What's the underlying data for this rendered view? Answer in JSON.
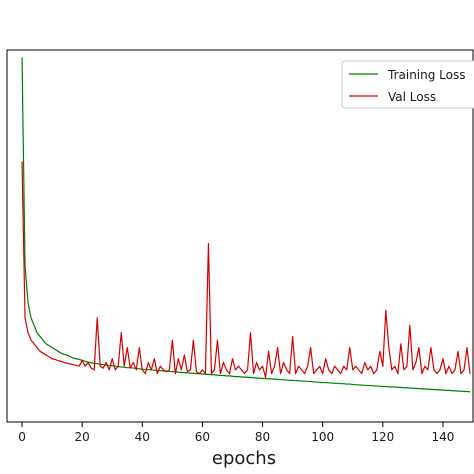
{
  "chart_data": {
    "type": "line",
    "title": "",
    "xlabel": "epochs",
    "ylabel": "",
    "xlim": [
      -5,
      150
    ],
    "ylim": [
      0,
      1
    ],
    "xticks": [
      0,
      20,
      40,
      60,
      80,
      100,
      120,
      140
    ],
    "grid": false,
    "legend_position": "top-right",
    "series": [
      {
        "name": "Training Loss",
        "color": "#008000",
        "x": [
          0,
          1,
          2,
          3,
          4,
          5,
          6,
          7,
          8,
          9,
          10,
          11,
          12,
          13,
          14,
          15,
          16,
          17,
          18,
          19,
          20,
          21,
          22,
          23,
          24,
          25,
          26,
          27,
          28,
          29,
          30,
          31,
          32,
          33,
          34,
          35,
          36,
          37,
          38,
          39,
          40,
          41,
          42,
          43,
          44,
          45,
          46,
          47,
          48,
          49,
          50,
          51,
          52,
          53,
          54,
          55,
          56,
          57,
          58,
          59,
          60,
          61,
          62,
          63,
          64,
          65,
          66,
          67,
          68,
          69,
          70,
          71,
          72,
          73,
          74,
          75,
          76,
          77,
          78,
          79,
          80,
          81,
          82,
          83,
          84,
          85,
          86,
          87,
          88,
          89,
          90,
          91,
          92,
          93,
          94,
          95,
          96,
          97,
          98,
          99,
          100,
          101,
          102,
          103,
          104,
          105,
          106,
          107,
          108,
          109,
          110,
          111,
          112,
          113,
          114,
          115,
          116,
          117,
          118,
          119,
          120,
          121,
          122,
          123,
          124,
          125,
          126,
          127,
          128,
          129,
          130,
          131,
          132,
          133,
          134,
          135,
          136,
          137,
          138,
          139,
          140,
          141,
          142,
          143,
          144,
          145,
          146,
          147,
          148,
          149
        ],
        "values": [
          0.98,
          0.42,
          0.32,
          0.28,
          0.26,
          0.24,
          0.23,
          0.22,
          0.21,
          0.205,
          0.2,
          0.195,
          0.19,
          0.185,
          0.182,
          0.18,
          0.176,
          0.172,
          0.17,
          0.168,
          0.166,
          0.163,
          0.161,
          0.159,
          0.158,
          0.157,
          0.155,
          0.154,
          0.153,
          0.152,
          0.151,
          0.15,
          0.149,
          0.148,
          0.147,
          0.146,
          0.146,
          0.145,
          0.144,
          0.143,
          0.142,
          0.141,
          0.141,
          0.14,
          0.139,
          0.139,
          0.138,
          0.137,
          0.137,
          0.136,
          0.135,
          0.135,
          0.134,
          0.133,
          0.133,
          0.132,
          0.131,
          0.131,
          0.13,
          0.13,
          0.129,
          0.128,
          0.128,
          0.127,
          0.127,
          0.126,
          0.125,
          0.125,
          0.124,
          0.124,
          0.123,
          0.122,
          0.122,
          0.121,
          0.121,
          0.12,
          0.12,
          0.119,
          0.118,
          0.118,
          0.117,
          0.117,
          0.116,
          0.116,
          0.115,
          0.115,
          0.114,
          0.113,
          0.113,
          0.112,
          0.112,
          0.111,
          0.111,
          0.11,
          0.11,
          0.109,
          0.109,
          0.108,
          0.107,
          0.107,
          0.106,
          0.106,
          0.105,
          0.105,
          0.104,
          0.104,
          0.103,
          0.103,
          0.102,
          0.102,
          0.101,
          0.1,
          0.1,
          0.099,
          0.099,
          0.098,
          0.098,
          0.097,
          0.097,
          0.096,
          0.096,
          0.095,
          0.095,
          0.094,
          0.094,
          0.093,
          0.093,
          0.092,
          0.092,
          0.091,
          0.091,
          0.09,
          0.09,
          0.089,
          0.089,
          0.088,
          0.088,
          0.087,
          0.087,
          0.086,
          0.086,
          0.085,
          0.085,
          0.084,
          0.084,
          0.083,
          0.083,
          0.082,
          0.082,
          0.081
        ]
      },
      {
        "name": "Val Loss",
        "color": "#d40000",
        "x": [
          0,
          1,
          2,
          3,
          4,
          5,
          6,
          7,
          8,
          9,
          10,
          11,
          12,
          13,
          14,
          15,
          16,
          17,
          18,
          19,
          20,
          21,
          22,
          23,
          24,
          25,
          26,
          27,
          28,
          29,
          30,
          31,
          32,
          33,
          34,
          35,
          36,
          37,
          38,
          39,
          40,
          41,
          42,
          43,
          44,
          45,
          46,
          47,
          48,
          49,
          50,
          51,
          52,
          53,
          54,
          55,
          56,
          57,
          58,
          59,
          60,
          61,
          62,
          63,
          64,
          65,
          66,
          67,
          68,
          69,
          70,
          71,
          72,
          73,
          74,
          75,
          76,
          77,
          78,
          79,
          80,
          81,
          82,
          83,
          84,
          85,
          86,
          87,
          88,
          89,
          90,
          91,
          92,
          93,
          94,
          95,
          96,
          97,
          98,
          99,
          100,
          101,
          102,
          103,
          104,
          105,
          106,
          107,
          108,
          109,
          110,
          111,
          112,
          113,
          114,
          115,
          116,
          117,
          118,
          119,
          120,
          121,
          122,
          123,
          124,
          125,
          126,
          127,
          128,
          129,
          130,
          131,
          132,
          133,
          134,
          135,
          136,
          137,
          138,
          139,
          140,
          141,
          142,
          143,
          144,
          145,
          146,
          147,
          148,
          149
        ],
        "values": [
          0.7,
          0.28,
          0.24,
          0.22,
          0.21,
          0.2,
          0.19,
          0.185,
          0.18,
          0.175,
          0.17,
          0.168,
          0.165,
          0.163,
          0.16,
          0.158,
          0.156,
          0.154,
          0.152,
          0.15,
          0.165,
          0.15,
          0.16,
          0.145,
          0.14,
          0.28,
          0.15,
          0.145,
          0.16,
          0.14,
          0.17,
          0.14,
          0.15,
          0.24,
          0.15,
          0.2,
          0.145,
          0.16,
          0.14,
          0.2,
          0.14,
          0.13,
          0.16,
          0.14,
          0.17,
          0.13,
          0.15,
          0.14,
          0.135,
          0.14,
          0.22,
          0.13,
          0.17,
          0.14,
          0.18,
          0.135,
          0.14,
          0.22,
          0.135,
          0.13,
          0.14,
          0.13,
          0.48,
          0.13,
          0.14,
          0.22,
          0.13,
          0.16,
          0.14,
          0.13,
          0.17,
          0.14,
          0.15,
          0.14,
          0.13,
          0.14,
          0.24,
          0.13,
          0.16,
          0.14,
          0.15,
          0.12,
          0.19,
          0.13,
          0.15,
          0.2,
          0.13,
          0.16,
          0.14,
          0.13,
          0.23,
          0.13,
          0.15,
          0.14,
          0.13,
          0.15,
          0.2,
          0.13,
          0.14,
          0.15,
          0.13,
          0.17,
          0.14,
          0.13,
          0.15,
          0.14,
          0.13,
          0.15,
          0.14,
          0.2,
          0.14,
          0.15,
          0.14,
          0.13,
          0.16,
          0.14,
          0.15,
          0.13,
          0.14,
          0.19,
          0.15,
          0.3,
          0.2,
          0.14,
          0.15,
          0.13,
          0.21,
          0.14,
          0.15,
          0.26,
          0.14,
          0.16,
          0.2,
          0.13,
          0.15,
          0.14,
          0.2,
          0.14,
          0.13,
          0.14,
          0.17,
          0.13,
          0.15,
          0.13,
          0.14,
          0.19,
          0.13,
          0.14,
          0.2,
          0.13
        ]
      }
    ]
  }
}
